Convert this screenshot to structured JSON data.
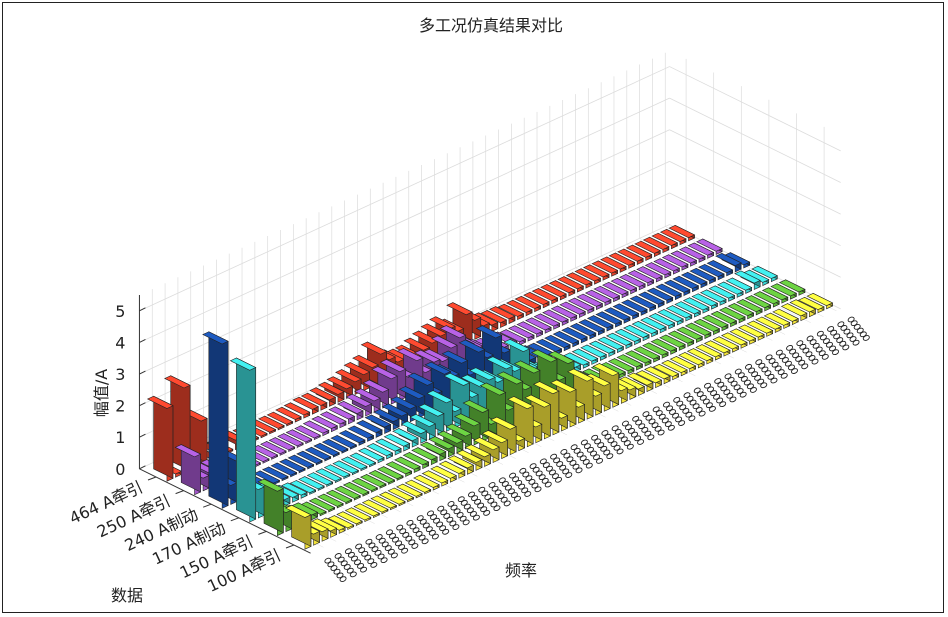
{
  "chart_data": {
    "type": "bar3d",
    "title": "多工况仿真结果对比",
    "xlabel": "频率",
    "ylabel": "数据",
    "zlabel": "幅值/A",
    "zlim": [
      0,
      5.5
    ],
    "zticks": [
      "0",
      "1",
      "2",
      "3",
      "4",
      "5"
    ],
    "grid": true,
    "colors": {
      "100 A牵引": "#f2e23a",
      "150 A牵引": "#5fb83a",
      "170 A制动": "#3ad2d2",
      "240 A制动": "#1a4fa8",
      "250 A牵引": "#a055c8",
      "464 A牵引": "#e0402a"
    },
    "series": [
      {
        "name": "100 A牵引",
        "values": [
          1.0,
          0.35,
          0.3,
          0.2,
          0.1,
          0.05,
          0.05,
          0.05,
          0.05,
          0.05,
          0.05,
          0.05,
          0.05,
          0.05,
          0.05,
          0.08,
          0.1,
          0.12,
          0.15,
          0.2,
          0.25,
          0.3,
          0.4,
          0.5,
          0.8,
          0.3,
          1.2,
          0.5,
          1.0,
          1.3,
          0.4,
          1.1,
          0.5,
          1.2,
          0.6,
          0.8,
          1.0,
          0.4,
          0.3,
          0.2,
          0.2,
          0.15,
          0.15,
          0.1,
          0.1,
          0.1,
          0.1,
          0.1,
          0.1,
          0.1,
          0.1,
          0.1,
          0.1,
          0.1,
          0.1,
          0.1,
          0.1,
          0.1,
          0.15,
          0.15,
          0.1,
          0.1
        ]
      },
      {
        "name": "150 A牵引",
        "values": [
          1.4,
          0.6,
          0.4,
          0.2,
          0.15,
          0.05,
          0.05,
          0.05,
          0.05,
          0.05,
          0.05,
          0.05,
          0.05,
          0.05,
          0.05,
          0.08,
          0.1,
          0.12,
          0.15,
          0.2,
          0.25,
          0.3,
          0.4,
          0.6,
          0.9,
          0.4,
          1.2,
          0.6,
          1.3,
          1.0,
          1.4,
          0.7,
          1.5,
          0.8,
          1.2,
          0.5,
          0.3,
          0.2,
          0.15,
          0.15,
          0.1,
          0.1,
          0.1,
          0.1,
          0.1,
          0.1,
          0.1,
          0.1,
          0.1,
          0.1,
          0.1,
          0.1,
          0.1,
          0.1,
          0.1,
          0.1,
          0.1,
          0.1,
          0.1,
          0.1,
          0.1,
          0.1
        ]
      },
      {
        "name": "170 A制动",
        "values": [
          4.8,
          0.9,
          0.6,
          0.45,
          0.2,
          0.15,
          0.1,
          0.05,
          0.05,
          0.05,
          0.05,
          0.05,
          0.05,
          0.05,
          0.05,
          0.08,
          0.1,
          0.12,
          0.15,
          0.2,
          0.3,
          0.4,
          0.6,
          0.9,
          0.5,
          1.2,
          0.7,
          0.9,
          1.0,
          0.8,
          1.1,
          0.9,
          1.4,
          0.7,
          0.5,
          0.3,
          0.2,
          0.15,
          0.15,
          0.1,
          0.1,
          0.1,
          0.1,
          0.1,
          0.1,
          0.1,
          0.1,
          0.1,
          0.1,
          0.1,
          0.1,
          0.1,
          0.1,
          0.1,
          0.1,
          0.1,
          0.1,
          0.1,
          0.1,
          0.2,
          0.1,
          0.1
        ]
      },
      {
        "name": "240 A制动",
        "values": [
          5.2,
          0.6,
          1.2,
          0.1,
          0.1,
          0.05,
          0.05,
          0.05,
          0.05,
          0.05,
          0.05,
          0.05,
          0.05,
          0.05,
          0.05,
          0.05,
          0.08,
          0.1,
          0.15,
          0.2,
          0.25,
          0.3,
          0.4,
          0.6,
          0.9,
          0.5,
          1.0,
          0.8,
          1.1,
          0.6,
          1.2,
          0.9,
          1.4,
          0.8,
          0.5,
          0.3,
          0.2,
          0.15,
          0.1,
          0.1,
          0.1,
          0.1,
          0.1,
          0.1,
          0.1,
          0.1,
          0.1,
          0.1,
          0.1,
          0.1,
          0.1,
          0.1,
          0.1,
          0.1,
          0.1,
          0.1,
          0.1,
          0.1,
          0.1,
          0.1,
          0.2,
          0.1
        ]
      },
      {
        "name": "250 A牵引",
        "values": [
          1.2,
          0.4,
          0.4,
          0.35,
          0.1,
          0.05,
          0.05,
          0.05,
          0.05,
          0.05,
          0.05,
          0.05,
          0.05,
          0.05,
          0.05,
          0.08,
          0.1,
          0.12,
          0.15,
          0.2,
          0.3,
          0.35,
          0.5,
          0.8,
          0.9,
          0.6,
          1.0,
          0.5,
          0.7,
          0.6,
          0.9,
          1.1,
          0.7,
          0.5,
          0.3,
          0.2,
          0.15,
          0.15,
          0.1,
          0.1,
          0.1,
          0.1,
          0.1,
          0.1,
          0.1,
          0.1,
          0.1,
          0.1,
          0.1,
          0.1,
          0.1,
          0.1,
          0.1,
          0.1,
          0.1,
          0.1,
          0.1,
          0.1,
          0.1,
          0.1,
          0.1,
          0.1
        ]
      },
      {
        "name": "464 A牵引",
        "values": [
          2.3,
          0.1,
          2.7,
          0.1,
          1.4,
          0.1,
          0.1,
          0.05,
          0.3,
          0.05,
          0.05,
          0.05,
          0.05,
          0.05,
          0.05,
          0.08,
          0.1,
          0.15,
          0.15,
          0.2,
          0.25,
          0.3,
          0.4,
          0.5,
          0.6,
          0.9,
          0.6,
          0.4,
          0.3,
          0.3,
          0.4,
          0.5,
          0.6,
          0.7,
          0.5,
          0.9,
          0.6,
          0.3,
          0.2,
          0.15,
          0.15,
          0.1,
          0.1,
          0.1,
          0.1,
          0.1,
          0.1,
          0.1,
          0.1,
          0.1,
          0.1,
          0.1,
          0.1,
          0.1,
          0.1,
          0.1,
          0.1,
          0.1,
          0.1,
          0.1,
          0.1,
          0.1
        ]
      }
    ],
    "row_labels": [
      "464 A牵引",
      "250 A牵引",
      "240 A制动",
      "170 A制动",
      "150 A牵引",
      "100 A牵引"
    ]
  }
}
